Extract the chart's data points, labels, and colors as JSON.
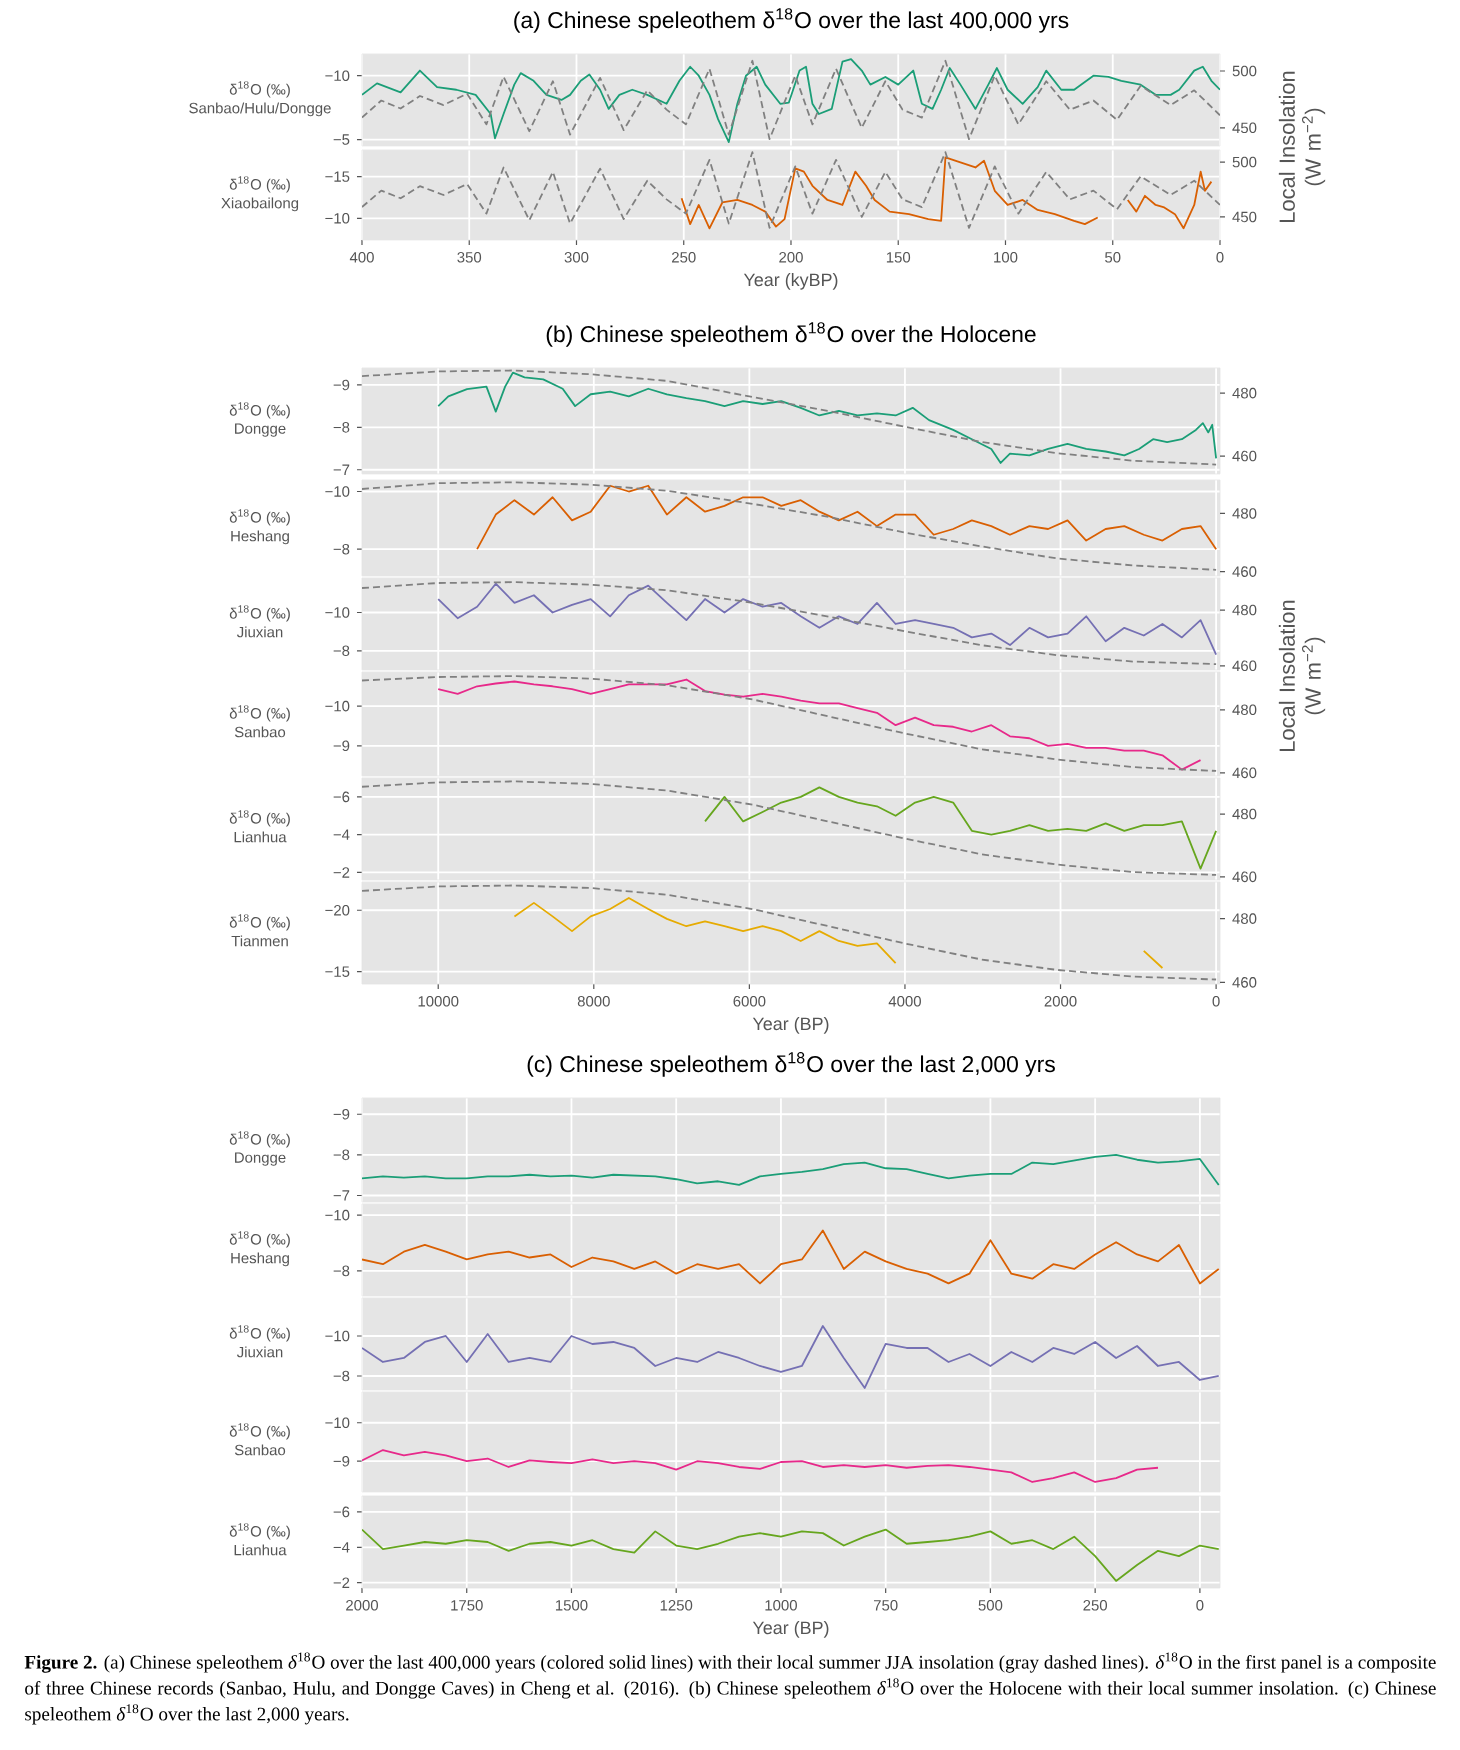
{
  "chart_data": [
    {
      "type": "line",
      "title": "(a) Chinese speleothem δ$^{18}$O over the last 400,000 yrs",
      "ylabel": "δ$^{18}$O (‰)",
      "y2label": "Local Insolation (W m$^{−2}$)",
      "grid": true,
      "tick_labels": "y",
      "x": [
        400,
        393,
        382,
        373,
        365,
        356,
        347,
        340,
        338,
        334,
        329,
        326,
        320,
        314,
        307,
        303,
        298,
        294,
        289,
        285,
        280,
        274,
        267,
        258,
        252,
        247,
        243,
        238,
        234,
        229,
        225,
        221,
        216,
        212,
        205,
        201,
        196,
        193,
        190,
        187,
        181,
        176,
        172,
        167,
        163,
        156,
        150,
        143,
        139,
        134,
        130,
        126,
        121,
        114,
        108,
        104,
        99,
        92,
        85,
        81,
        74,
        68,
        59,
        52,
        46,
        37,
        30,
        23,
        19,
        12,
        8,
        4,
        0
      ],
      "xlim": [
        400,
        0
      ],
      "xticks": [
        400,
        350,
        300,
        250,
        200,
        150,
        100,
        50,
        0
      ],
      "ylim": [
        -4.5,
        -11.7
      ],
      "yticks": [
        {
          "value": -10,
          "label": "−10"
        },
        {
          "value": -5,
          "label": "−5"
        }
      ],
      "y2lim": [
        434,
        515
      ],
      "y2ticks": [
        450,
        500
      ],
      "series": [
        {
          "name": "Sanbao/Hulu/Dongge",
          "color": "#1b9e77",
          "values": [
            -8.5,
            -9.4,
            -8.7,
            -10.4,
            -9.1,
            -8.9,
            -8.5,
            -7.0,
            -5.1,
            -7.0,
            -9.3,
            -10.2,
            -9.6,
            -8.5,
            -8.1,
            -8.5,
            -9.6,
            -10.1,
            -8.9,
            -7.4,
            -8.5,
            -8.9,
            -8.5,
            -7.8,
            -9.6,
            -10.7,
            -10.0,
            -8.5,
            -6.6,
            -4.8,
            -7.8,
            -10.0,
            -10.7,
            -9.3,
            -7.8,
            -7.9,
            -10.4,
            -10.7,
            -7.8,
            -7.0,
            -7.4,
            -11.1,
            -11.3,
            -10.4,
            -9.3,
            -9.9,
            -9.3,
            -10.4,
            -7.8,
            -7.4,
            -8.9,
            -10.6,
            -9.3,
            -7.4,
            -9.3,
            -10.6,
            -8.9,
            -7.8,
            -9.1,
            -10.4,
            -8.9,
            -8.9,
            -10.0,
            -9.9,
            -9.6,
            -9.3,
            -8.5,
            -8.5,
            -8.9,
            -10.4,
            -10.7,
            -9.6,
            -8.9
          ]
        },
        {
          "axis": "y2",
          "color": "#808080",
          "line_style": "dashed",
          "x": [
            400,
            391,
            382,
            373,
            362,
            351,
            342,
            334,
            322,
            311,
            303,
            289,
            278,
            267,
            258,
            249,
            238,
            229,
            218,
            210,
            198,
            190,
            179,
            167,
            156,
            148,
            139,
            128,
            117,
            105,
            94,
            81,
            70,
            59,
            48,
            37,
            23,
            12,
            0
          ],
          "values": [
            459,
            474,
            467,
            478,
            470,
            480,
            453,
            495,
            447,
            491,
            444,
            494,
            448,
            483,
            466,
            453,
            502,
            444,
            509,
            440,
            496,
            453,
            502,
            450,
            491,
            466,
            459,
            509,
            440,
            496,
            453,
            491,
            466,
            474,
            457,
            487,
            470,
            483,
            461
          ]
        }
      ]
    },
    {
      "type": "line",
      "xlabel": "Year (kyBP)",
      "ylabel": "δ$^{18}$O (‰)",
      "grid": true,
      "x": [
        251,
        247,
        243,
        238,
        232,
        225,
        218,
        212,
        207,
        203,
        198,
        194,
        190,
        183,
        176,
        170,
        165,
        161,
        154,
        145,
        136,
        130,
        128,
        121,
        114,
        110,
        105,
        99,
        92,
        85,
        77,
        68,
        63,
        57,
        50,
        43,
        39,
        35,
        30,
        26,
        21,
        17,
        12,
        9,
        7,
        4
      ],
      "xlim": [
        400,
        0
      ],
      "xticks": [
        400,
        350,
        300,
        250,
        200,
        150,
        100,
        50,
        0
      ],
      "ylim": [
        -7.4,
        -18.2
      ],
      "yticks": [
        {
          "value": -15,
          "label": "−15"
        },
        {
          "value": -10,
          "label": "−10"
        }
      ],
      "y2lim": [
        429,
        511
      ],
      "y2ticks": [
        450,
        500
      ],
      "series": [
        {
          "name": "Xiaobailong",
          "color": "#d95f02",
          "values": [
            -12.4,
            -9.3,
            -11.6,
            -8.8,
            -11.9,
            -12.2,
            -11.6,
            -10.8,
            -9.0,
            -9.9,
            -16.0,
            -15.6,
            -13.9,
            -12.2,
            -11.6,
            -15.6,
            -13.9,
            -12.2,
            -10.8,
            -10.5,
            -9.9,
            -9.7,
            -17.3,
            -16.7,
            -16.1,
            -16.9,
            -13.3,
            -11.6,
            -12.2,
            -11.0,
            -10.5,
            -9.7,
            -9.3,
            -10.1,
            null,
            -12.2,
            -10.8,
            -12.7,
            -11.6,
            -11.3,
            -10.5,
            -8.8,
            -11.6,
            -15.6,
            -13.3,
            -14.4
          ]
        },
        {
          "axis": "y2",
          "color": "#808080",
          "line_style": "dashed",
          "x": [
            400,
            391,
            382,
            373,
            362,
            351,
            342,
            334,
            322,
            311,
            303,
            289,
            278,
            267,
            258,
            249,
            238,
            229,
            218,
            210,
            198,
            190,
            179,
            167,
            156,
            148,
            139,
            128,
            117,
            105,
            94,
            81,
            70,
            59,
            48,
            37,
            23,
            12,
            0
          ],
          "values": [
            459,
            474,
            467,
            478,
            470,
            480,
            453,
            495,
            447,
            491,
            444,
            494,
            448,
            483,
            466,
            453,
            502,
            444,
            509,
            440,
            496,
            453,
            502,
            450,
            491,
            466,
            459,
            509,
            440,
            496,
            453,
            491,
            466,
            474,
            457,
            487,
            470,
            483,
            461
          ]
        }
      ]
    },
    {
      "type": "line",
      "title": "(b) Chinese speleothem δ$^{18}$O over the Holocene",
      "ylabel": "δ$^{18}$O (‰)",
      "y2label": "Local Insolation (W m$^{−2}$)",
      "grid": true,
      "tick_labels": "y",
      "x": [
        10000,
        9870,
        9630,
        9380,
        9260,
        9140,
        9040,
        8890,
        8650,
        8400,
        8240,
        8040,
        7790,
        7550,
        7300,
        7060,
        6810,
        6570,
        6320,
        6080,
        5830,
        5590,
        5340,
        5100,
        4850,
        4610,
        4360,
        4120,
        3900,
        3690,
        3380,
        3140,
        2890,
        2770,
        2650,
        2400,
        2160,
        1910,
        1670,
        1420,
        1180,
        990,
        810,
        630,
        440,
        260,
        170,
        100,
        50,
        0
      ],
      "xlim": [
        10980,
        -50
      ],
      "xticks": [
        10000,
        8000,
        6000,
        4000,
        2000,
        0
      ],
      "ylim": [
        -6.9,
        -9.4
      ],
      "yticks": [
        {
          "value": -9,
          "label": "−9"
        },
        {
          "value": -8,
          "label": "−8"
        },
        {
          "value": -7,
          "label": "−7"
        }
      ],
      "y2lim": [
        454.3,
        488
      ],
      "y2ticks": [
        460,
        480
      ],
      "series": [
        {
          "name": "Dongge",
          "color": "#1b9e77",
          "values": [
            -8.5,
            -8.73,
            -8.9,
            -8.96,
            -8.37,
            -8.96,
            -9.29,
            -9.18,
            -9.13,
            -8.91,
            -8.5,
            -8.78,
            -8.84,
            -8.73,
            -8.91,
            -8.78,
            -8.69,
            -8.62,
            -8.5,
            -8.62,
            -8.55,
            -8.62,
            -8.46,
            -8.28,
            -8.39,
            -8.28,
            -8.33,
            -8.28,
            -8.46,
            -8.17,
            -7.94,
            -7.72,
            -7.49,
            -7.16,
            -7.38,
            -7.34,
            -7.49,
            -7.61,
            -7.49,
            -7.43,
            -7.34,
            -7.49,
            -7.72,
            -7.65,
            -7.72,
            -7.94,
            -8.1,
            -7.88,
            -8.06,
            -7.27
          ]
        },
        {
          "axis": "y2",
          "color": "#808080",
          "line_style": "dashed",
          "x": [
            10980,
            10000,
            9020,
            8040,
            7060,
            5960,
            4980,
            4000,
            3020,
            2040,
            1060,
            0
          ],
          "values": [
            485.4,
            486.9,
            487.2,
            486,
            483.9,
            478.8,
            474.3,
            469.3,
            464.5,
            460.9,
            458.5,
            457.3
          ]
        }
      ]
    },
    {
      "type": "line",
      "ylabel": "δ$^{18}$O (‰)",
      "grid": true,
      "tick_labels": "y",
      "x": [
        9500,
        9260,
        9020,
        8770,
        8530,
        8280,
        8040,
        7790,
        7550,
        7300,
        7060,
        6810,
        6570,
        6320,
        6080,
        5830,
        5590,
        5340,
        5100,
        4850,
        4610,
        4360,
        4120,
        3870,
        3630,
        3380,
        3140,
        2890,
        2650,
        2400,
        2160,
        1910,
        1670,
        1420,
        1180,
        930,
        690,
        440,
        200,
        0
      ],
      "xlim": [
        10980,
        -50
      ],
      "xticks": [
        10000,
        8000,
        6000,
        4000,
        2000,
        0
      ],
      "ylim": [
        -7.07,
        -10.4
      ],
      "yticks": [
        {
          "value": -10,
          "label": "−10"
        },
        {
          "value": -8,
          "label": "−8"
        }
      ],
      "y2lim": [
        458.5,
        491.5
      ],
      "y2ticks": [
        460,
        480
      ],
      "series": [
        {
          "name": "Heshang",
          "color": "#d95f02",
          "values": [
            -8.0,
            -9.2,
            -9.7,
            -9.2,
            -9.8,
            -9.0,
            -9.3,
            -10.2,
            -10.0,
            -10.2,
            -9.2,
            -9.8,
            -9.3,
            -9.5,
            -9.8,
            -9.8,
            -9.5,
            -9.7,
            -9.3,
            -9.0,
            -9.3,
            -8.8,
            -9.2,
            -9.2,
            -8.5,
            -8.7,
            -9.0,
            -8.8,
            -8.5,
            -8.8,
            -8.7,
            -9.0,
            -8.3,
            -8.7,
            -8.8,
            -8.5,
            -8.3,
            -8.7,
            -8.8,
            -8.0
          ]
        },
        {
          "axis": "y2",
          "color": "#808080",
          "line_style": "dashed",
          "x": [
            10980,
            10000,
            9020,
            8040,
            7060,
            5960,
            4980,
            4000,
            3020,
            2040,
            1060,
            0
          ],
          "values": [
            488.4,
            490.4,
            490.7,
            489.9,
            487.8,
            483.3,
            478.8,
            473.4,
            468.7,
            464.5,
            462.1,
            460.6
          ]
        }
      ]
    },
    {
      "type": "line",
      "ylabel": "δ$^{18}$O (‰)",
      "grid": true,
      "tick_labels": "y",
      "x": [
        10000,
        9750,
        9500,
        9260,
        9020,
        8770,
        8530,
        8280,
        8040,
        7790,
        7550,
        7300,
        7060,
        6810,
        6570,
        6320,
        6080,
        5830,
        5590,
        5340,
        5100,
        4850,
        4610,
        4360,
        4120,
        3870,
        3630,
        3380,
        3140,
        2890,
        2650,
        2400,
        2160,
        1910,
        1670,
        1420,
        1180,
        930,
        690,
        440,
        200,
        0
      ],
      "xlim": [
        10980,
        -50
      ],
      "xticks": [
        10000,
        8000,
        6000,
        4000,
        2000,
        0
      ],
      "ylim": [
        -7.0,
        -11.8
      ],
      "yticks": [
        {
          "value": -10,
          "label": "−10"
        },
        {
          "value": -8,
          "label": "−8"
        }
      ],
      "y2lim": [
        458.5,
        491.5
      ],
      "y2ticks": [
        460,
        480
      ],
      "series": [
        {
          "name": "Jiuxian",
          "color": "#7570b3",
          "values": [
            -10.7,
            -9.7,
            -10.3,
            -11.5,
            -10.5,
            -10.9,
            -10.0,
            -10.4,
            -10.7,
            -9.8,
            -10.9,
            -11.4,
            -10.5,
            -9.6,
            -10.7,
            -10.0,
            -10.7,
            -10.3,
            -10.5,
            -9.8,
            -9.2,
            -9.8,
            -9.4,
            -10.5,
            -9.4,
            -9.6,
            -9.4,
            -9.2,
            -8.7,
            -8.9,
            -8.3,
            -9.2,
            -8.7,
            -8.9,
            -9.8,
            -8.5,
            -9.2,
            -8.8,
            -9.4,
            -8.7,
            -9.6,
            -7.8
          ]
        },
        {
          "axis": "y2",
          "color": "#808080",
          "line_style": "dashed",
          "x": [
            10980,
            10000,
            9020,
            8040,
            7060,
            5960,
            4980,
            4000,
            3020,
            2040,
            1060,
            0
          ],
          "values": [
            487.9,
            489.7,
            490,
            489.1,
            487.1,
            482.6,
            477.6,
            472.4,
            467.4,
            463.8,
            461.5,
            460.6
          ]
        }
      ]
    },
    {
      "type": "line",
      "ylabel": "δ$^{18}$O (‰)",
      "grid": true,
      "tick_labels": "y",
      "x": [
        10000,
        9750,
        9500,
        9260,
        9020,
        8770,
        8530,
        8280,
        8040,
        7790,
        7550,
        7300,
        7060,
        6810,
        6570,
        6320,
        6080,
        5830,
        5590,
        5340,
        5100,
        4850,
        4610,
        4360,
        4120,
        3870,
        3630,
        3380,
        3140,
        2890,
        2650,
        2400,
        2160,
        1910,
        1670,
        1420,
        1180,
        930,
        690,
        440,
        200
      ],
      "xlim": [
        10980,
        -50
      ],
      "xticks": [
        10000,
        8000,
        6000,
        4000,
        2000,
        0
      ],
      "ylim": [
        -8.24,
        -10.86
      ],
      "yticks": [
        {
          "value": -10,
          "label": "−10"
        },
        {
          "value": -9,
          "label": "−9"
        }
      ],
      "y2lim": [
        459,
        492
      ],
      "y2ticks": [
        460,
        480
      ],
      "series": [
        {
          "name": "Sanbao",
          "color": "#e7298a",
          "values": [
            -10.43,
            -10.31,
            -10.5,
            -10.57,
            -10.62,
            -10.55,
            -10.5,
            -10.43,
            -10.31,
            -10.43,
            -10.55,
            -10.55,
            -10.55,
            -10.67,
            -10.38,
            -10.29,
            -10.24,
            -10.31,
            -10.24,
            -10.14,
            -10.07,
            -10.07,
            -9.95,
            -9.83,
            -9.52,
            -9.71,
            -9.52,
            -9.48,
            -9.36,
            -9.52,
            -9.24,
            -9.19,
            -9.0,
            -9.05,
            -8.95,
            -8.95,
            -8.88,
            -8.88,
            -8.76,
            -8.4,
            -8.64
          ]
        },
        {
          "axis": "y2",
          "color": "#808080",
          "line_style": "dashed",
          "x": [
            10980,
            10000,
            9020,
            8040,
            7060,
            5960,
            4980,
            4000,
            3020,
            2040,
            1060,
            0
          ],
          "values": [
            489.3,
            490.4,
            490.7,
            489.9,
            487.8,
            483.3,
            477.9,
            472.5,
            467.5,
            464.2,
            461.8,
            460.6
          ]
        }
      ]
    },
    {
      "type": "line",
      "ylabel": "δ$^{18}$O (‰)",
      "grid": true,
      "tick_labels": "y",
      "x": [
        6570,
        6320,
        6080,
        5830,
        5590,
        5340,
        5100,
        4850,
        4610,
        4360,
        4120,
        3870,
        3630,
        3380,
        3140,
        2890,
        2650,
        2400,
        2160,
        1910,
        1670,
        1420,
        1180,
        930,
        690,
        440,
        200,
        0
      ],
      "xlim": [
        10980,
        -50
      ],
      "xticks": [
        10000,
        8000,
        6000,
        4000,
        2000,
        0
      ],
      "ylim": [
        -1.6,
        -7.0
      ],
      "yticks": [
        {
          "value": -6,
          "label": "−6"
        },
        {
          "value": -4,
          "label": "−4"
        },
        {
          "value": -2,
          "label": "−2"
        }
      ],
      "y2lim": [
        459,
        491.5
      ],
      "y2ticks": [
        460,
        480
      ],
      "series": [
        {
          "name": "Lianhua",
          "color": "#66a61e",
          "values": [
            -4.7,
            -6.0,
            -4.7,
            -5.2,
            -5.7,
            -6.0,
            -6.5,
            -6.0,
            -5.7,
            -5.5,
            -5.0,
            -5.7,
            -6.0,
            -5.7,
            -4.2,
            -4.0,
            -4.2,
            -4.5,
            -4.2,
            -4.3,
            -4.2,
            -4.6,
            -4.2,
            -4.5,
            -4.5,
            -4.7,
            -2.2,
            -4.2
          ]
        },
        {
          "axis": "y2",
          "color": "#808080",
          "line_style": "dashed",
          "x": [
            10980,
            10000,
            9020,
            8040,
            7060,
            5960,
            4980,
            4000,
            3020,
            2040,
            1060,
            0
          ],
          "values": [
            488.7,
            490.1,
            490.4,
            489.6,
            487.5,
            483,
            477.6,
            472.2,
            467.2,
            463.9,
            461.5,
            460.6
          ]
        }
      ]
    },
    {
      "type": "line",
      "xlabel": "Year (BP)",
      "ylabel": "δ$^{18}$O (‰)",
      "grid": true,
      "x": [
        9020,
        8770,
        8530,
        8280,
        8040,
        7790,
        7550,
        7300,
        7060,
        6810,
        6570,
        6320,
        6080,
        5830,
        5590,
        5340,
        5100,
        4850,
        4610,
        4360,
        4120,
        2400,
        930,
        690
      ],
      "xlim": [
        10980,
        -50
      ],
      "xticks": [
        10000,
        8000,
        6000,
        4000,
        2000,
        0
      ],
      "ylim": [
        -14.0,
        -22.3
      ],
      "yticks": [
        {
          "value": -20,
          "label": "−20"
        },
        {
          "value": -15,
          "label": "−15"
        }
      ],
      "y2lim": [
        459.5,
        491.5
      ],
      "y2ticks": [
        460,
        480
      ],
      "series": [
        {
          "name": "Tianmen",
          "color": "#e6ab02",
          "values": [
            -19.5,
            -20.6,
            -19.5,
            -18.3,
            -19.5,
            -20.1,
            -21.0,
            -20.1,
            -19.3,
            -18.7,
            -19.1,
            -18.7,
            -18.3,
            -18.7,
            -18.3,
            -17.5,
            -18.3,
            -17.5,
            -17.1,
            -17.3,
            -15.7,
            null,
            -16.7,
            -15.3
          ]
        },
        {
          "axis": "y2",
          "color": "#808080",
          "line_style": "dashed",
          "x": [
            10980,
            10000,
            9020,
            8040,
            7060,
            5960,
            4980,
            4000,
            3020,
            2040,
            1060,
            0
          ],
          "values": [
            488.7,
            490.1,
            490.4,
            489.6,
            487.5,
            483,
            477.6,
            472.2,
            467.2,
            463.9,
            461.8,
            460.9
          ]
        }
      ]
    },
    {
      "type": "line",
      "title": "(c) Chinese speleothem δ$^{18}$O over the last 2,000 yrs",
      "ylabel": "δ$^{18}$O (‰)",
      "grid": true,
      "tick_labels": "y",
      "x": [
        2000,
        1950,
        1900,
        1850,
        1800,
        1750,
        1700,
        1650,
        1600,
        1550,
        1500,
        1450,
        1400,
        1350,
        1300,
        1250,
        1200,
        1150,
        1100,
        1050,
        1000,
        950,
        900,
        850,
        800,
        750,
        700,
        650,
        600,
        550,
        500,
        450,
        400,
        350,
        300,
        250,
        200,
        150,
        100,
        50,
        0,
        -45
      ],
      "xlim": [
        2000,
        -48
      ],
      "xticks": [
        2000,
        1750,
        1500,
        1250,
        1000,
        750,
        500,
        250,
        0
      ],
      "ylim": [
        -6.84,
        -9.4
      ],
      "yticks": [
        {
          "value": -9,
          "label": "−9"
        },
        {
          "value": -8,
          "label": "−8"
        },
        {
          "value": -7,
          "label": "−7"
        }
      ],
      "series": [
        {
          "name": "Dongge",
          "color": "#1b9e77",
          "values": [
            -7.42,
            -7.47,
            -7.44,
            -7.47,
            -7.42,
            -7.42,
            -7.47,
            -7.47,
            -7.51,
            -7.47,
            -7.49,
            -7.44,
            -7.51,
            -7.49,
            -7.47,
            -7.4,
            -7.3,
            -7.35,
            -7.26,
            -7.47,
            -7.53,
            -7.58,
            -7.65,
            -7.77,
            -7.81,
            -7.67,
            -7.65,
            -7.53,
            -7.42,
            -7.49,
            -7.53,
            -7.53,
            -7.81,
            -7.77,
            -7.86,
            -7.95,
            -8.0,
            -7.88,
            -7.81,
            -7.84,
            -7.9,
            -7.26
          ]
        }
      ]
    },
    {
      "type": "line",
      "ylabel": "δ$^{18}$O (‰)",
      "grid": true,
      "tick_labels": "y",
      "x": [
        2000,
        1950,
        1900,
        1850,
        1800,
        1750,
        1700,
        1650,
        1600,
        1550,
        1500,
        1450,
        1400,
        1350,
        1300,
        1250,
        1200,
        1150,
        1100,
        1050,
        1000,
        950,
        900,
        850,
        800,
        750,
        700,
        650,
        600,
        550,
        500,
        450,
        400,
        350,
        300,
        250,
        200,
        150,
        100,
        50,
        0,
        -45
      ],
      "xlim": [
        2000,
        -48
      ],
      "xticks": [
        2000,
        1750,
        1500,
        1250,
        1000,
        750,
        500,
        250,
        0
      ],
      "ylim": [
        -7.1,
        -10.4
      ],
      "yticks": [
        {
          "value": -10,
          "label": "−10"
        },
        {
          "value": -8,
          "label": "−8"
        }
      ],
      "series": [
        {
          "name": "Heshang",
          "color": "#d95f02",
          "values": [
            -8.41,
            -8.24,
            -8.69,
            -8.93,
            -8.69,
            -8.41,
            -8.59,
            -8.69,
            -8.48,
            -8.59,
            -8.14,
            -8.48,
            -8.34,
            -8.07,
            -8.34,
            -7.9,
            -8.24,
            -8.07,
            -8.24,
            -7.55,
            -8.24,
            -8.41,
            -9.45,
            -8.07,
            -8.69,
            -8.34,
            -8.07,
            -7.9,
            -7.55,
            -7.9,
            -9.1,
            -7.9,
            -7.72,
            -8.24,
            -8.07,
            -8.59,
            -9.03,
            -8.59,
            -8.34,
            -8.93,
            -7.55,
            -8.07
          ]
        }
      ]
    },
    {
      "type": "line",
      "ylabel": "δ$^{18}$O (‰)",
      "grid": true,
      "tick_labels": "y",
      "x": [
        2000,
        1950,
        1900,
        1850,
        1800,
        1750,
        1700,
        1650,
        1600,
        1550,
        1500,
        1450,
        1400,
        1350,
        1300,
        1250,
        1200,
        1150,
        1100,
        1050,
        1000,
        950,
        900,
        850,
        800,
        750,
        700,
        650,
        600,
        550,
        500,
        450,
        400,
        350,
        300,
        250,
        200,
        150,
        100,
        50,
        0,
        -45
      ],
      "xlim": [
        2000,
        -48
      ],
      "xticks": [
        2000,
        1750,
        1500,
        1250,
        1000,
        750,
        500,
        250,
        0
      ],
      "ylim": [
        -7.3,
        -11.9
      ],
      "yticks": [
        {
          "value": -10,
          "label": "−10"
        },
        {
          "value": -8,
          "label": "−8"
        }
      ],
      "series": [
        {
          "name": "Jiuxian",
          "color": "#7570b3",
          "values": [
            -9.4,
            -8.7,
            -8.9,
            -9.7,
            -10.0,
            -8.7,
            -10.1,
            -8.7,
            -8.9,
            -8.7,
            -10.0,
            -9.6,
            -9.7,
            -9.4,
            -8.5,
            -8.9,
            -8.7,
            -9.2,
            -8.9,
            -8.5,
            -8.2,
            -8.5,
            -10.5,
            -8.9,
            -7.4,
            -9.6,
            -9.4,
            -9.4,
            -8.7,
            -9.1,
            -8.5,
            -9.2,
            -8.7,
            -9.4,
            -9.1,
            -9.7,
            -8.9,
            -9.5,
            -8.5,
            -8.7,
            -7.8,
            -8.0
          ]
        }
      ]
    },
    {
      "type": "line",
      "ylabel": "δ$^{18}$O (‰)",
      "grid": true,
      "tick_labels": "y",
      "x": [
        2000,
        1950,
        1900,
        1850,
        1800,
        1750,
        1700,
        1650,
        1600,
        1550,
        1500,
        1450,
        1400,
        1350,
        1300,
        1250,
        1200,
        1150,
        1100,
        1050,
        1000,
        950,
        900,
        850,
        800,
        750,
        700,
        650,
        600,
        550,
        500,
        450,
        400,
        350,
        300,
        250,
        200,
        150,
        100
      ],
      "xlim": [
        2000,
        -48
      ],
      "xticks": [
        2000,
        1750,
        1500,
        1250,
        1000,
        750,
        500,
        250,
        0
      ],
      "ylim": [
        -8.2,
        -10.8
      ],
      "yticks": [
        {
          "value": -10,
          "label": "−10"
        },
        {
          "value": -9,
          "label": "−9"
        }
      ],
      "series": [
        {
          "name": "Sanbao",
          "color": "#e7298a",
          "values": [
            -9.02,
            -9.29,
            -9.15,
            -9.24,
            -9.15,
            -9.0,
            -9.07,
            -8.85,
            -9.02,
            -8.98,
            -8.95,
            -9.05,
            -8.95,
            -9.0,
            -8.95,
            -8.78,
            -9.0,
            -8.95,
            -8.85,
            -8.8,
            -8.98,
            -9.0,
            -8.85,
            -8.9,
            -8.85,
            -8.9,
            -8.83,
            -8.88,
            -8.9,
            -8.85,
            -8.78,
            -8.71,
            -8.46,
            -8.56,
            -8.71,
            -8.46,
            -8.56,
            -8.78,
            -8.83
          ]
        }
      ]
    },
    {
      "type": "line",
      "xlabel": "Year (BP)",
      "ylabel": "δ$^{18}$O (‰)",
      "grid": true,
      "x": [
        2000,
        1950,
        1900,
        1850,
        1800,
        1750,
        1700,
        1650,
        1600,
        1550,
        1500,
        1450,
        1400,
        1350,
        1300,
        1250,
        1200,
        1150,
        1100,
        1050,
        1000,
        950,
        900,
        850,
        800,
        750,
        700,
        650,
        600,
        550,
        500,
        450,
        400,
        350,
        300,
        250,
        200,
        150,
        100,
        50,
        0,
        -45
      ],
      "xlim": [
        2000,
        -48
      ],
      "xticks": [
        2000,
        1750,
        1500,
        1250,
        1000,
        750,
        500,
        250,
        0
      ],
      "ylim": [
        -1.7,
        -6.9
      ],
      "yticks": [
        {
          "value": -6,
          "label": "−6"
        },
        {
          "value": -4,
          "label": "−4"
        },
        {
          "value": -2,
          "label": "−2"
        }
      ],
      "series": [
        {
          "name": "Lianhua",
          "color": "#66a61e",
          "values": [
            -5.0,
            -3.9,
            -4.1,
            -4.3,
            -4.2,
            -4.4,
            -4.3,
            -3.8,
            -4.2,
            -4.3,
            -4.1,
            -4.4,
            -3.9,
            -3.7,
            -4.9,
            -4.1,
            -3.9,
            -4.2,
            -4.6,
            -4.8,
            -4.6,
            -4.9,
            -4.8,
            -4.1,
            -4.6,
            -5.0,
            -4.2,
            -4.3,
            -4.4,
            -4.6,
            -4.9,
            -4.2,
            -4.4,
            -3.9,
            -4.6,
            -3.5,
            -2.1,
            -3.0,
            -3.8,
            -3.5,
            -4.1,
            -3.9
          ]
        }
      ],
      "annotations": [
        "**Figure 2.** (a) Chinese speleothem *δ*$^{18}$O over the last 400,000 years (colored solid lines) with their local summer JJA insolation (gray dashed lines). *δ*$^{18}$O in the first panel is a composite of three Chinese records (Sanbao, Hulu, and Dongge Caves) in Cheng et al. (2016). (b) Chinese speleothem *δ*$^{18}$O over the Holocene with their local summer insolation. (c) Chinese speleothem *δ*$^{18}$O over the last 2,000 years."
      ]
    }
  ]
}
